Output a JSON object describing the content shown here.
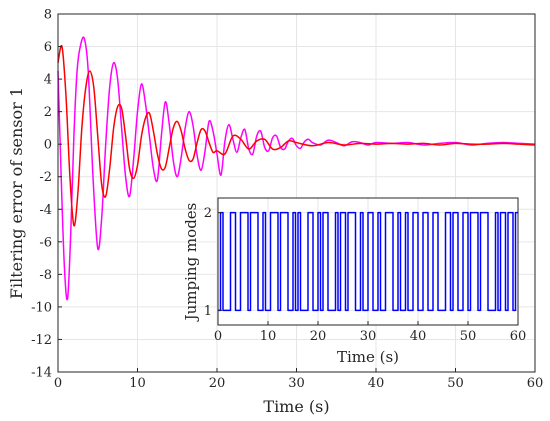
{
  "chart_data": [
    {
      "type": "line",
      "xlabel": "Time (s)",
      "ylabel": "Filtering error of sensor 1",
      "xlim": [
        0,
        60
      ],
      "ylim": [
        -14,
        8
      ],
      "xticks": [
        0,
        10,
        20,
        30,
        40,
        50,
        60
      ],
      "yticks": [
        -14,
        -12,
        -10,
        -8,
        -6,
        -4,
        -2,
        0,
        2,
        4,
        6,
        8
      ],
      "grid": true,
      "series": [
        {
          "color": "#ff00ff",
          "x": [
            0,
            0.4,
            0.8,
            1.2,
            1.6,
            2,
            2.4,
            2.8,
            3.3,
            3.8,
            4.4,
            5,
            5.5,
            6,
            6.5,
            7,
            7.5,
            8,
            8.5,
            9,
            9.5,
            10,
            10.5,
            11,
            11.5,
            12,
            12.5,
            13,
            13.5,
            14,
            14.5,
            15,
            15.5,
            16,
            16.5,
            17,
            17.5,
            18,
            18.5,
            19,
            19.5,
            20,
            20.5,
            21,
            21.5,
            22,
            22.5,
            23,
            23.5,
            24,
            24.5,
            25,
            25.5,
            26,
            26.5,
            27,
            27.5,
            28,
            28.5,
            29,
            29.5,
            30,
            30.5,
            31,
            31.5,
            32,
            33,
            34,
            35,
            36,
            37,
            38,
            39,
            40,
            42,
            44,
            46,
            48,
            50,
            52,
            54,
            56,
            58,
            60
          ],
          "values": [
            4.5,
            -2,
            -7.5,
            -9.5,
            -5.5,
            0.5,
            4.5,
            6,
            6.5,
            4.5,
            -2,
            -6.4,
            -4.5,
            0,
            3.5,
            5,
            4,
            1,
            -2,
            -3.2,
            -1,
            2,
            3.7,
            2.5,
            0.5,
            -1.5,
            -2.2,
            0.5,
            2.6,
            1.2,
            -1,
            -2,
            -0.8,
            1,
            2,
            1.1,
            -0.7,
            -1.6,
            -0.4,
            1.4,
            0.8,
            -0.6,
            -1.9,
            0.2,
            1.2,
            0.3,
            -0.5,
            0.4,
            0.9,
            -0.3,
            -0.6,
            0.5,
            0.8,
            -0.2,
            -0.4,
            0.4,
            0.5,
            -0.2,
            -0.3,
            0.2,
            0.35,
            -0.1,
            -0.25,
            0.15,
            0.3,
            0.1,
            -0.05,
            0.25,
            0.1,
            -0.1,
            0.15,
            0.1,
            -0.05,
            0.1,
            0.05,
            0.1,
            -0.05,
            0.05,
            0.1,
            -0.05,
            0.05,
            0.1,
            0.05,
            0.0
          ]
        },
        {
          "color": "#ff0000",
          "x": [
            0,
            0.5,
            1,
            1.5,
            2,
            2.5,
            3,
            3.5,
            4,
            4.5,
            5,
            5.5,
            6,
            6.5,
            7,
            7.5,
            8,
            8.5,
            9,
            9.5,
            10,
            10.5,
            11,
            11.5,
            12,
            12.5,
            13,
            13.5,
            14,
            14.5,
            15,
            15.5,
            16,
            16.5,
            17,
            17.5,
            18,
            18.5,
            19,
            19.5,
            20,
            21,
            22,
            23,
            24,
            25,
            26,
            27,
            28,
            29,
            30,
            32,
            34,
            36,
            38,
            40,
            42,
            44,
            46,
            48,
            50,
            52,
            54,
            56,
            58,
            60
          ],
          "values": [
            5,
            6,
            3,
            -2,
            -5,
            -3,
            1,
            3.5,
            4.5,
            3.5,
            0.5,
            -2.5,
            -3.2,
            -1.5,
            1,
            2.3,
            2.2,
            0.5,
            -1.5,
            -2.1,
            -1.3,
            0.5,
            1.6,
            1.9,
            0.8,
            -0.6,
            -1.5,
            -1.4,
            -0.2,
            1.0,
            1.4,
            0.8,
            -0.3,
            -1.0,
            -0.9,
            0.1,
            0.9,
            0.8,
            0.1,
            -0.5,
            -0.4,
            -0.6,
            0.5,
            0.3,
            -0.3,
            0.2,
            0.3,
            -0.3,
            -0.2,
            0.2,
            0.1,
            -0.1,
            0.1,
            -0.05,
            0.05,
            0.0,
            0.05,
            0.0,
            0.05,
            -0.05,
            0.05,
            0.0,
            0.0,
            0.05,
            0.0,
            -0.05
          ]
        }
      ]
    },
    {
      "type": "line",
      "xlabel": "Time (s)",
      "ylabel": "Jumping modes",
      "xlim": [
        0,
        60
      ],
      "ylim": [
        0.85,
        2.15
      ],
      "xticks": [
        0,
        10,
        20,
        30,
        40,
        50,
        60
      ],
      "yticks": [
        1,
        2
      ],
      "grid": true,
      "series": [
        {
          "color": "#0000ff",
          "step": true,
          "x": [
            0,
            0.5,
            1.0,
            2.5,
            3.5,
            4.5,
            6.0,
            6.5,
            8.0,
            9.0,
            9.5,
            10.5,
            12.0,
            12.5,
            14.0,
            15.0,
            15.5,
            16.0,
            16.5,
            18.0,
            19.0,
            20.0,
            20.5,
            21.0,
            22.0,
            23.5,
            24.0,
            24.5,
            25.5,
            26.0,
            27.5,
            28.5,
            29.0,
            30.0,
            31.0,
            32.0,
            32.5,
            33.5,
            35.0,
            36.0,
            36.5,
            37.5,
            38.0,
            39.0,
            40.0,
            41.0,
            42.0,
            43.0,
            44.0,
            45.5,
            46.5,
            47.0,
            48.0,
            49.0,
            50.0,
            50.5,
            52.0,
            52.5,
            54.0,
            55.5,
            56.0,
            56.5,
            57.5,
            58.0,
            59.0,
            59.5,
            60.0
          ],
          "values": [
            1,
            2,
            1,
            2,
            1,
            2,
            1,
            2,
            1,
            2,
            1,
            2,
            1,
            2,
            1,
            2,
            1,
            2,
            1,
            2,
            1,
            2,
            1,
            2,
            1,
            2,
            1,
            2,
            1,
            2,
            1,
            2,
            1,
            2,
            1,
            2,
            1,
            2,
            1,
            2,
            1,
            2,
            1,
            2,
            1,
            2,
            1,
            2,
            1,
            2,
            1,
            2,
            1,
            2,
            1,
            2,
            1,
            2,
            1,
            2,
            1,
            2,
            1,
            2,
            1,
            2,
            2
          ]
        }
      ]
    }
  ]
}
